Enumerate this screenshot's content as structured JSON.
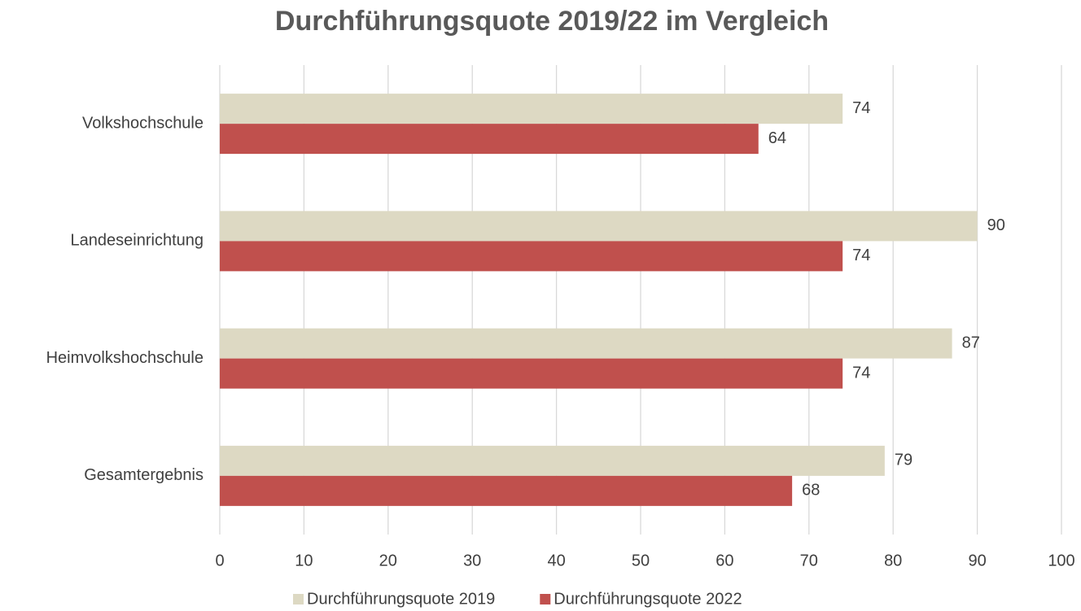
{
  "chart_data": {
    "type": "hbar",
    "title": "Durchführungsquote 2019/22 im Vergleich",
    "categories": [
      "Volkshochschule",
      "Landeseinrichtung",
      "Heimvolkshochschule",
      "Gesamtergebnis"
    ],
    "series": [
      {
        "name": "Durchführungsquote 2019",
        "color": "#ddd9c3",
        "values": [
          74,
          90,
          87,
          79
        ]
      },
      {
        "name": "Durchführungsquote 2022",
        "color": "#c0504d",
        "values": [
          64,
          74,
          74,
          68
        ]
      }
    ],
    "xlim": [
      0,
      100
    ],
    "xticks": [
      0,
      10,
      20,
      30,
      40,
      50,
      60,
      70,
      80,
      90,
      100
    ],
    "grid": true,
    "legend": "bottom"
  }
}
